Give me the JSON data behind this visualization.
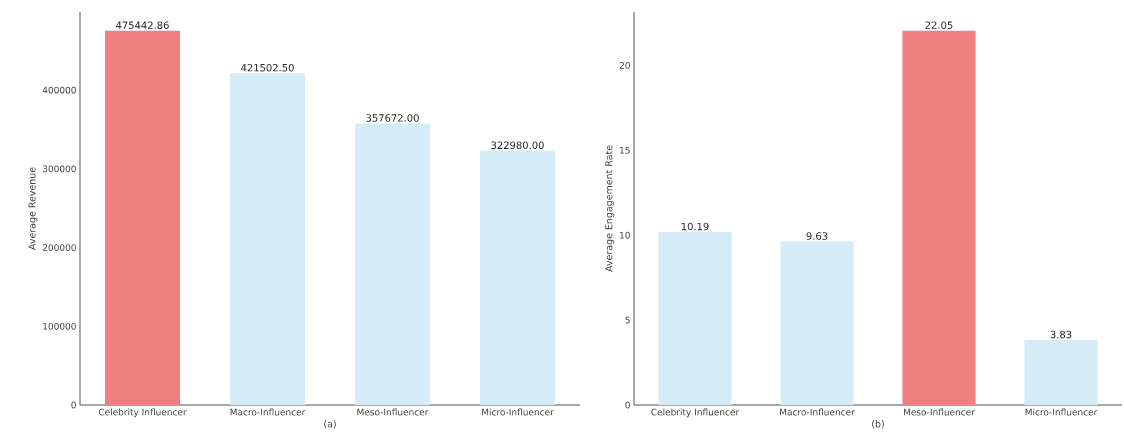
{
  "chart_data": [
    {
      "type": "bar",
      "xlabel": "(a)",
      "ylabel": "Average Revenue",
      "categories": [
        "Celebrity Influencer",
        "Macro-Influencer",
        "Meso-Influencer",
        "Micro-Influencer"
      ],
      "values": [
        475442.86,
        421502.5,
        357672.0,
        322980.0
      ],
      "value_labels": [
        "475442.86",
        "421502.50",
        "357672.00",
        "322980.00"
      ],
      "colors": [
        "#f08080",
        "#d5ebf5",
        "#d5ebf5",
        "#d5ebf5"
      ],
      "ylim": [
        0,
        499215
      ],
      "yticks": [
        0,
        100000,
        200000,
        300000,
        400000
      ],
      "grid": false
    },
    {
      "type": "bar",
      "xlabel": "(b)",
      "ylabel": "Average Engagement Rate",
      "categories": [
        "Celebrity Influencer",
        "Macro-Influencer",
        "Meso-Influencer",
        "Micro-Influencer"
      ],
      "values": [
        10.19,
        9.63,
        22.05,
        3.83
      ],
      "value_labels": [
        "10.19",
        "9.63",
        "22.05",
        "3.83"
      ],
      "colors": [
        "#d5ebf5",
        "#d5ebf5",
        "#f08080",
        "#d5ebf5"
      ],
      "ylim": [
        0,
        23.15
      ],
      "yticks": [
        0,
        5,
        10,
        15,
        20
      ],
      "grid": false
    }
  ]
}
